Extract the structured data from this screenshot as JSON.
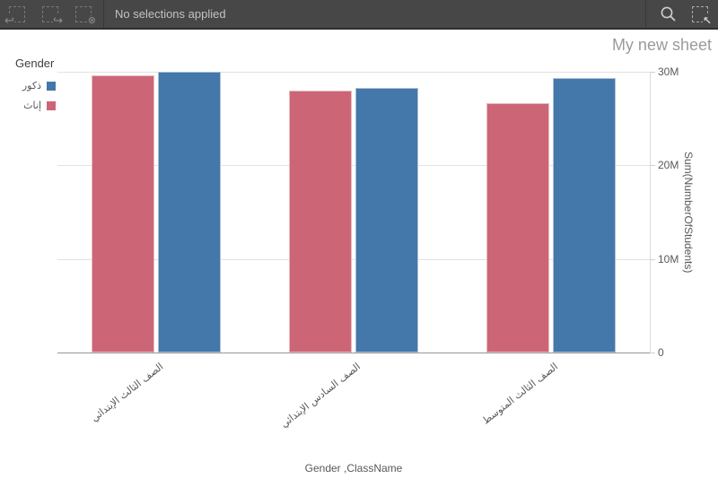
{
  "toolbar": {
    "status_text": "No selections applied",
    "icons": {
      "undo_glyph": "↩",
      "redo_glyph": "↪",
      "clear_selections_glyph": "⊗",
      "selections_tool_glyph": "↖"
    }
  },
  "sheet": {
    "title": "My new sheet"
  },
  "chart_data": {
    "type": "bar",
    "legend_title": "Gender",
    "legend_position": "top-left",
    "xlabel": "Gender ,ClassName",
    "ylabel": "Sum(NumberOfStudents)",
    "categories": [
      "الصف الثالث الإبتدائي",
      "الصف السادس الإبتدائي",
      "الصف الثالث المتوسط"
    ],
    "series": [
      {
        "name": "ذكور",
        "color": "#4477aa",
        "values": [
          30.0,
          28.3,
          29.3
        ]
      },
      {
        "name": "إناث",
        "color": "#cc6677",
        "values": [
          29.6,
          28.0,
          26.6
        ]
      }
    ],
    "value_unit": "millions",
    "ylim": [
      0,
      30
    ],
    "y_ticks": [
      {
        "label": "0",
        "value": 0
      },
      {
        "label": "10M",
        "value": 10
      },
      {
        "label": "20M",
        "value": 20
      },
      {
        "label": "30M",
        "value": 30
      }
    ],
    "y_axis_side": "right",
    "grid": true
  },
  "colors": {
    "toolbar_bg": "#474747",
    "male_blue": "#4477aa",
    "female_red": "#cc6677",
    "gridline": "#e2e2e2",
    "axis_text": "#595959"
  }
}
